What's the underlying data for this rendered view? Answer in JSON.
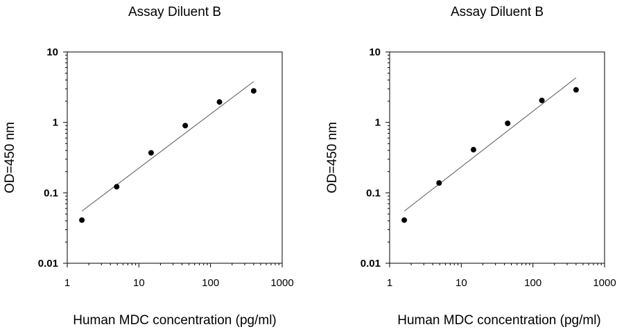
{
  "chart_data": [
    {
      "type": "scatter",
      "title": "Assay Diluent B",
      "xlabel": "Human MDC  concentration (pg/ml)",
      "ylabel": "OD=450 nm",
      "x_scale": "log",
      "y_scale": "log",
      "xlim": [
        1,
        1000
      ],
      "ylim": [
        0.01,
        10
      ],
      "x_ticks": [
        "1",
        "10",
        "100",
        "1000"
      ],
      "y_ticks": [
        "10",
        "1",
        "0.1",
        "0.01"
      ],
      "grid": false,
      "series": [
        {
          "x": [
            1.6,
            4.9,
            14.8,
            44.4,
            133.3,
            400
          ],
          "y": [
            0.041,
            0.122,
            0.37,
            0.9,
            1.95,
            2.8
          ]
        }
      ],
      "trendline": {
        "x": [
          1.6,
          400
        ],
        "y": [
          0.055,
          3.8
        ]
      }
    },
    {
      "type": "scatter",
      "title": "Assay Diluent B",
      "xlabel": "Human MDC  concentration (pg/ml)",
      "ylabel": "OD=450 nm",
      "x_scale": "log",
      "y_scale": "log",
      "xlim": [
        1,
        1000
      ],
      "ylim": [
        0.01,
        10
      ],
      "x_ticks": [
        "1",
        "10",
        "100",
        "1000"
      ],
      "y_ticks": [
        "10",
        "1",
        "0.1",
        "0.01"
      ],
      "grid": false,
      "series": [
        {
          "x": [
            1.6,
            4.9,
            14.8,
            44.4,
            133.3,
            400
          ],
          "y": [
            0.041,
            0.138,
            0.41,
            0.97,
            2.05,
            2.9
          ]
        }
      ],
      "trendline": {
        "x": [
          1.6,
          400
        ],
        "y": [
          0.055,
          4.3
        ]
      }
    }
  ]
}
